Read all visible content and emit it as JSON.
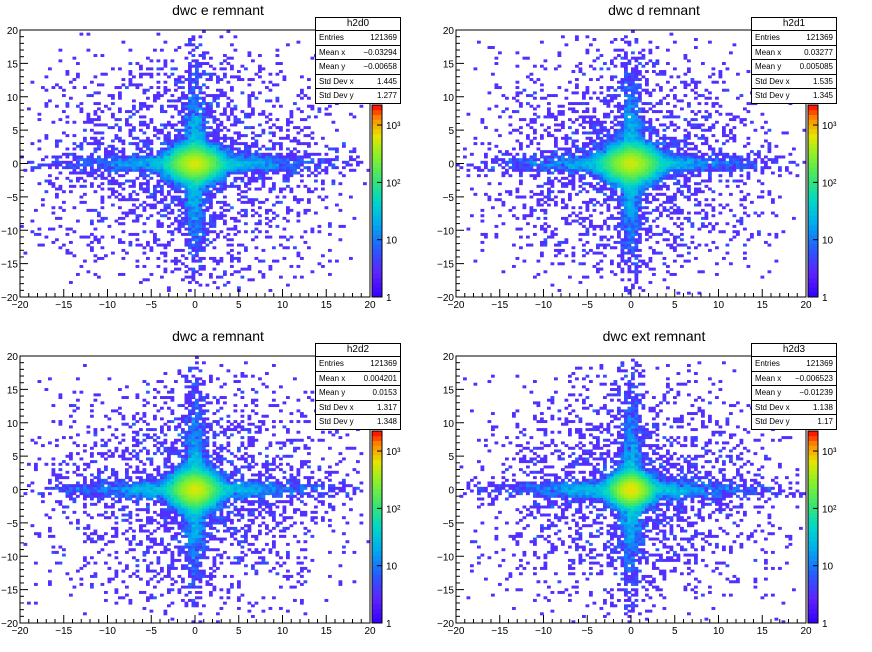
{
  "chart_data": [
    {
      "type": "heatmap",
      "title": "dwc e remnant",
      "stats": {
        "name": "h2d0",
        "entries": "121369",
        "mean_x": "−0.03294",
        "mean_y": "−0.00658",
        "std_x": "1.445",
        "std_y": "1.277"
      },
      "xlim": [
        -20,
        20
      ],
      "ylim": [
        -20,
        20
      ],
      "xticks": [
        "−20",
        "−15",
        "−10",
        "−5",
        "0",
        "5",
        "10",
        "15",
        "20"
      ],
      "yticks": [
        "20",
        "15",
        "10",
        "5",
        "0",
        "−5",
        "−10",
        "−15",
        "−20"
      ],
      "zscale": "log",
      "zticks": [
        "1",
        "10",
        "10²",
        "10³"
      ]
    },
    {
      "type": "heatmap",
      "title": "dwc d remnant",
      "stats": {
        "name": "h2d1",
        "entries": "121369",
        "mean_x": "0.03277",
        "mean_y": "0.005085",
        "std_x": "1.535",
        "std_y": "1.345"
      },
      "xlim": [
        -20,
        20
      ],
      "ylim": [
        -20,
        20
      ],
      "xticks": [
        "−20",
        "−15",
        "−10",
        "−5",
        "0",
        "5",
        "10",
        "15",
        "20"
      ],
      "yticks": [
        "20",
        "15",
        "10",
        "5",
        "0",
        "−5",
        "−10",
        "−15",
        "−20"
      ],
      "zscale": "log",
      "zticks": [
        "1",
        "10",
        "10²",
        "10³"
      ]
    },
    {
      "type": "heatmap",
      "title": "dwc a remnant",
      "stats": {
        "name": "h2d2",
        "entries": "121369",
        "mean_x": "0.004201",
        "mean_y": "0.0153",
        "std_x": "1.317",
        "std_y": "1.348"
      },
      "xlim": [
        -20,
        20
      ],
      "ylim": [
        -20,
        20
      ],
      "xticks": [
        "−20",
        "−15",
        "−10",
        "−5",
        "0",
        "5",
        "10",
        "15",
        "20"
      ],
      "yticks": [
        "20",
        "15",
        "10",
        "5",
        "0",
        "−5",
        "−10",
        "−15",
        "−20"
      ],
      "zscale": "log",
      "zticks": [
        "1",
        "10",
        "10²",
        "10³"
      ]
    },
    {
      "type": "heatmap",
      "title": "dwc ext remnant",
      "stats": {
        "name": "h2d3",
        "entries": "121369",
        "mean_x": "−0.006523",
        "mean_y": "−0.01239",
        "std_x": "1.138",
        "std_y": "1.17"
      },
      "xlim": [
        -20,
        20
      ],
      "ylim": [
        -20,
        20
      ],
      "xticks": [
        "−20",
        "−15",
        "−10",
        "−5",
        "0",
        "5",
        "10",
        "15",
        "20"
      ],
      "yticks": [
        "20",
        "15",
        "10",
        "5",
        "0",
        "−5",
        "−10",
        "−15",
        "−20"
      ],
      "zscale": "log",
      "zticks": [
        "1",
        "10",
        "10²",
        "10³"
      ]
    }
  ],
  "labels": {
    "entries": "Entries",
    "mean_x": "Mean x",
    "mean_y": "Mean y",
    "std_x": "Std Dev x",
    "std_y": "Std Dev y"
  }
}
